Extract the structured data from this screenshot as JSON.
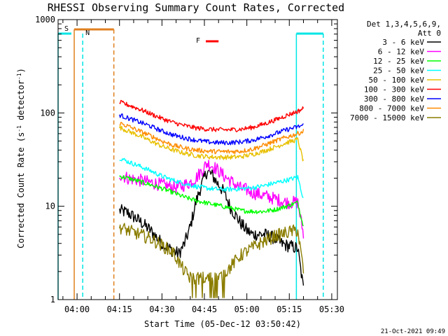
{
  "chart_data": {
    "type": "line",
    "title": "RHESSI Observing Summary Count Rates, Corrected",
    "xlabel": "Start Time (05-Dec-12 03:50:42)",
    "ylabel_main": "Corrected Count Rate (s",
    "ylabel_sup1": "-1",
    "ylabel_mid": " detector",
    "ylabel_sup2": "-1",
    "ylabel_end": ")",
    "y_scale": "log",
    "ylim": [
      1,
      1000
    ],
    "xlim_minutes": [
      3.3,
      102
    ],
    "y_ticks": [
      {
        "value": 1,
        "label": "1"
      },
      {
        "value": 10,
        "label": "10"
      },
      {
        "value": 100,
        "label": "100"
      },
      {
        "value": 1000,
        "label": "1000"
      }
    ],
    "x_ticks": [
      {
        "label": "04:00",
        "minute": 10
      },
      {
        "label": "04:15",
        "minute": 25
      },
      {
        "label": "04:30",
        "minute": 40
      },
      {
        "label": "04:45",
        "minute": 55
      },
      {
        "label": "05:00",
        "minute": 70
      },
      {
        "label": "05:15",
        "minute": 85
      },
      {
        "label": "05:30",
        "minute": 100
      }
    ],
    "legend": {
      "header1": "Det 1,3,4,5,6,9,",
      "header2": "Att 0",
      "position": "right",
      "entries": [
        {
          "label": "3 - 6 keV",
          "color": "#000000"
        },
        {
          "label": "6 - 12 keV",
          "color": "#ff00ff"
        },
        {
          "label": "12 - 25 keV",
          "color": "#00ff00"
        },
        {
          "label": "25 - 50 keV",
          "color": "#00ffff"
        },
        {
          "label": "50 - 100 keV",
          "color": "#e8c000"
        },
        {
          "label": "100 - 300 keV",
          "color": "#ff0000"
        },
        {
          "label": "300 - 800 keV",
          "color": "#0000ff"
        },
        {
          "label": "800 - 7000 keV",
          "color": "#ff8c00"
        },
        {
          "label": "7000 - 15000 keV",
          "color": "#8b7d00"
        }
      ]
    },
    "annotations": {
      "saa_label": "S",
      "night_label": "N",
      "flare_label": "F",
      "saa_color": "#e08020",
      "night_color": "#00e5e5",
      "flare_color": "#ff0000",
      "saa_bar": [
        9.0,
        23.0
      ],
      "night_bars": [
        [
          3.3,
          8.0
        ],
        [
          87.5,
          97.0
        ]
      ],
      "flare_bar": [
        55.5,
        60.0
      ],
      "saa_vlines": [
        9.0,
        23.0
      ],
      "night_vlines": [
        3.3,
        12.0,
        87.5,
        97.0
      ]
    },
    "data_window_minutes": [
      25.0,
      90.0
    ],
    "series": [
      {
        "name": "3 - 6 keV",
        "color": "#000000",
        "x": [
          25,
          28,
          32,
          36,
          40,
          44,
          46,
          48,
          50,
          52,
          54,
          56,
          58,
          60,
          62,
          64,
          66,
          68,
          70,
          72,
          74,
          76,
          78,
          80,
          82,
          84,
          86,
          88,
          90
        ],
        "y": [
          9,
          8.5,
          7,
          5.5,
          4,
          3.3,
          3.1,
          4,
          6,
          11,
          17,
          24,
          21,
          17,
          14,
          10,
          8,
          6.5,
          5.5,
          5,
          5,
          5,
          4.8,
          4.5,
          4,
          3.8,
          3.7,
          3.5,
          1.3
        ]
      },
      {
        "name": "6 - 12 keV",
        "color": "#ff00ff",
        "x": [
          25,
          28,
          32,
          36,
          40,
          44,
          46,
          48,
          50,
          52,
          54,
          56,
          58,
          60,
          62,
          64,
          66,
          68,
          70,
          72,
          74,
          76,
          78,
          80,
          82,
          84,
          86,
          88,
          90
        ],
        "y": [
          22,
          20,
          19,
          18,
          17,
          16,
          16,
          17,
          18,
          20,
          24,
          29,
          27,
          24,
          21,
          19,
          17,
          15.5,
          15,
          14,
          13.5,
          13,
          12.5,
          12,
          11.5,
          11,
          11,
          11,
          5
        ]
      },
      {
        "name": "12 - 25 keV",
        "color": "#00ff00",
        "x": [
          25,
          28,
          32,
          36,
          40,
          44,
          48,
          52,
          56,
          60,
          64,
          68,
          72,
          76,
          80,
          84,
          88,
          90
        ],
        "y": [
          21,
          20,
          18.5,
          17,
          15.5,
          14,
          12.5,
          11.5,
          10.8,
          10.2,
          9.6,
          9.0,
          8.8,
          8.8,
          9.2,
          10,
          11,
          6
        ]
      },
      {
        "name": "25 - 50 keV",
        "color": "#00ffff",
        "x": [
          25,
          28,
          32,
          36,
          40,
          44,
          48,
          52,
          56,
          60,
          64,
          68,
          72,
          76,
          80,
          84,
          88,
          90
        ],
        "y": [
          33,
          30,
          27,
          24,
          21,
          19,
          17.5,
          16.3,
          15.6,
          15.2,
          15.2,
          15.4,
          15.8,
          16.6,
          17.8,
          19,
          20.5,
          12
        ]
      },
      {
        "name": "50 - 100 keV",
        "color": "#e8c000",
        "x": [
          25,
          28,
          32,
          36,
          40,
          44,
          48,
          52,
          56,
          60,
          64,
          68,
          72,
          76,
          80,
          84,
          88,
          90
        ],
        "y": [
          70,
          64,
          57,
          50,
          44,
          40,
          37,
          35,
          34,
          33.5,
          33.5,
          34,
          36,
          39,
          43,
          48,
          52,
          30
        ]
      },
      {
        "name": "100 - 300 keV",
        "color": "#ff0000",
        "x": [
          25,
          28,
          32,
          36,
          40,
          44,
          48,
          52,
          56,
          60,
          64,
          68,
          72,
          76,
          80,
          84,
          88,
          90
        ],
        "y": [
          130,
          122,
          110,
          98,
          87,
          79,
          73,
          69,
          67,
          66,
          66,
          67,
          70,
          76,
          84,
          94,
          104,
          112
        ]
      },
      {
        "name": "300 - 800 keV",
        "color": "#0000ff",
        "x": [
          25,
          28,
          32,
          36,
          40,
          44,
          48,
          52,
          56,
          60,
          64,
          68,
          72,
          76,
          80,
          84,
          88,
          90
        ],
        "y": [
          95,
          88,
          80,
          72,
          64,
          58,
          54,
          51,
          49,
          48,
          48,
          49,
          51,
          55,
          60,
          66,
          71,
          74
        ]
      },
      {
        "name": "800 - 7000 keV",
        "color": "#ff8c00",
        "x": [
          25,
          28,
          32,
          36,
          40,
          44,
          48,
          52,
          56,
          60,
          64,
          68,
          72,
          76,
          80,
          84,
          88,
          90
        ],
        "y": [
          78,
          72,
          64,
          57,
          50,
          45,
          42,
          40,
          39,
          38.5,
          38.5,
          39,
          41,
          45,
          50,
          55,
          60,
          64
        ]
      },
      {
        "name": "7000 - 15000 keV",
        "color": "#8b7d00",
        "x": [
          25,
          28,
          32,
          36,
          40,
          44,
          46,
          48,
          50,
          52,
          54,
          56,
          58,
          60,
          62,
          64,
          66,
          68,
          70,
          72,
          74,
          76,
          78,
          80,
          82,
          84,
          86,
          88,
          90
        ],
        "y": [
          6,
          5.5,
          5,
          4.5,
          3.8,
          3.2,
          2.5,
          2.0,
          1.7,
          1.7,
          1.7,
          1.7,
          1.7,
          1.7,
          1.9,
          2.2,
          2.6,
          3.0,
          3.3,
          3.6,
          3.9,
          4.2,
          4.5,
          4.8,
          5.0,
          5.2,
          5.4,
          5.5,
          2
        ]
      }
    ]
  },
  "footer": {
    "date": "21-Oct-2021 09:49"
  }
}
